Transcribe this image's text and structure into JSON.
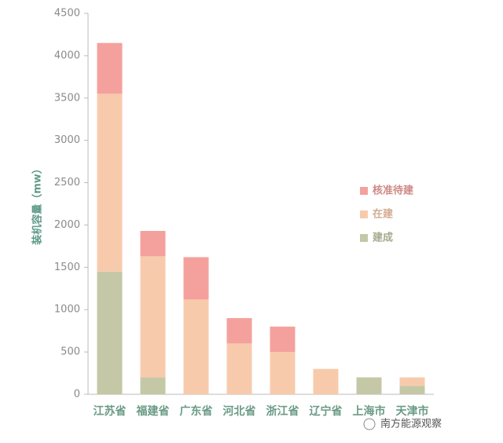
{
  "chart_data": {
    "type": "stacked-bar",
    "y_label": "装机容量（mw）",
    "categories": [
      "江苏省",
      "福建省",
      "广东省",
      "河北省",
      "浙江省",
      "辽宁省",
      "上海市",
      "天津市"
    ],
    "series": [
      {
        "name": "建成",
        "color": "#c4c8a6",
        "values": [
          1450,
          200,
          0,
          0,
          0,
          0,
          200,
          100
        ]
      },
      {
        "name": "在建",
        "color": "#f8caac",
        "values": [
          2100,
          1430,
          1120,
          600,
          500,
          300,
          0,
          100
        ]
      },
      {
        "name": "核准待建",
        "color": "#f4a19d",
        "values": [
          600,
          300,
          500,
          300,
          300,
          0,
          0,
          0
        ]
      }
    ],
    "ylim": [
      0,
      4500
    ],
    "yticks": [
      0,
      500,
      1000,
      1500,
      2000,
      2500,
      3000,
      3500,
      4000,
      4500
    ],
    "watermark": "南方能源观察"
  }
}
